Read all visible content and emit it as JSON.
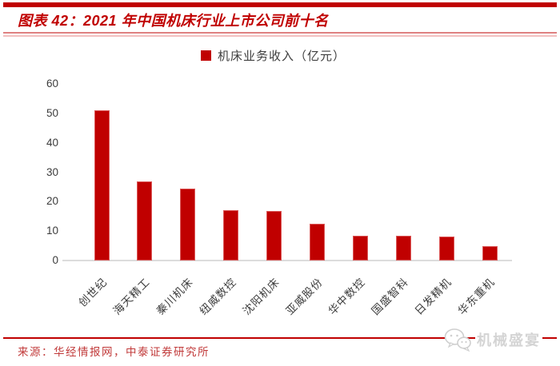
{
  "header": {
    "title": "图表 42：2021 年中国机床行业上市公司前十名"
  },
  "chart_data": {
    "type": "bar",
    "title": "图表 42：2021 年中国机床行业上市公司前十名",
    "legend": [
      "机床业务收入（亿元）"
    ],
    "legend_position": "top-center",
    "categories": [
      "创世纪",
      "海天精工",
      "秦川机床",
      "纽威数控",
      "沈阳机床",
      "亚威股份",
      "华中数控",
      "国盛智科",
      "日发精机",
      "华东重机"
    ],
    "values": [
      51,
      27,
      24.5,
      17,
      16.9,
      12.4,
      8.4,
      8.4,
      8.2,
      5
    ],
    "xlabel": "",
    "ylabel": "",
    "ylim": [
      0,
      60
    ],
    "yticks": [
      0,
      10,
      20,
      30,
      40,
      50,
      60
    ],
    "grid": false,
    "bar_color": "#c00000"
  },
  "footer": {
    "source": "来源：华经情报网，中泰证券研究所"
  },
  "watermark": {
    "icon": "wechat-icon",
    "label": "机械盛宴"
  },
  "colors": {
    "accent_red": "#c00000",
    "title_rule_dark": "#df8080",
    "title_rule_light": "#f3c1c1",
    "axis_text": "#3b3b3b",
    "baseline_gray": "#dcdcdc",
    "watermark_gray": "#d4d4d4"
  }
}
